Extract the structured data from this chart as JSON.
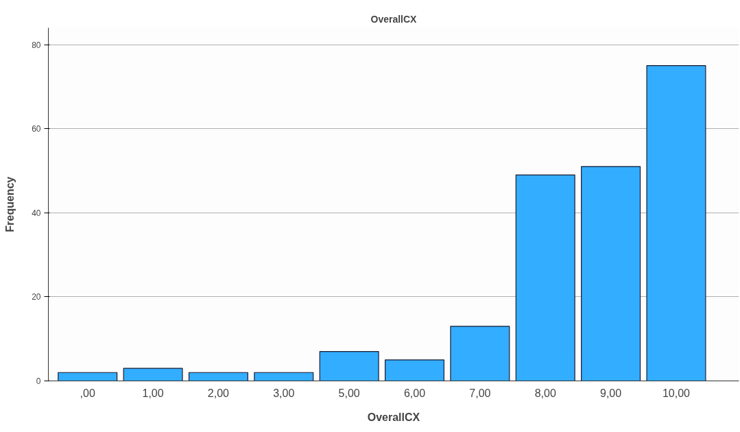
{
  "chart_data": {
    "type": "bar",
    "title": "OverallCX",
    "xlabel": "OverallCX",
    "ylabel": "Frequency",
    "categories": [
      ",00",
      "1,00",
      "2,00",
      "3,00",
      "5,00",
      "6,00",
      "7,00",
      "8,00",
      "9,00",
      "10,00"
    ],
    "values": [
      2,
      3,
      2,
      2,
      7,
      5,
      13,
      49,
      51,
      75
    ],
    "color": "#33adff",
    "ylim": [
      0,
      84
    ],
    "yticks": [
      0,
      20,
      40,
      60,
      80
    ],
    "grid": "y"
  }
}
